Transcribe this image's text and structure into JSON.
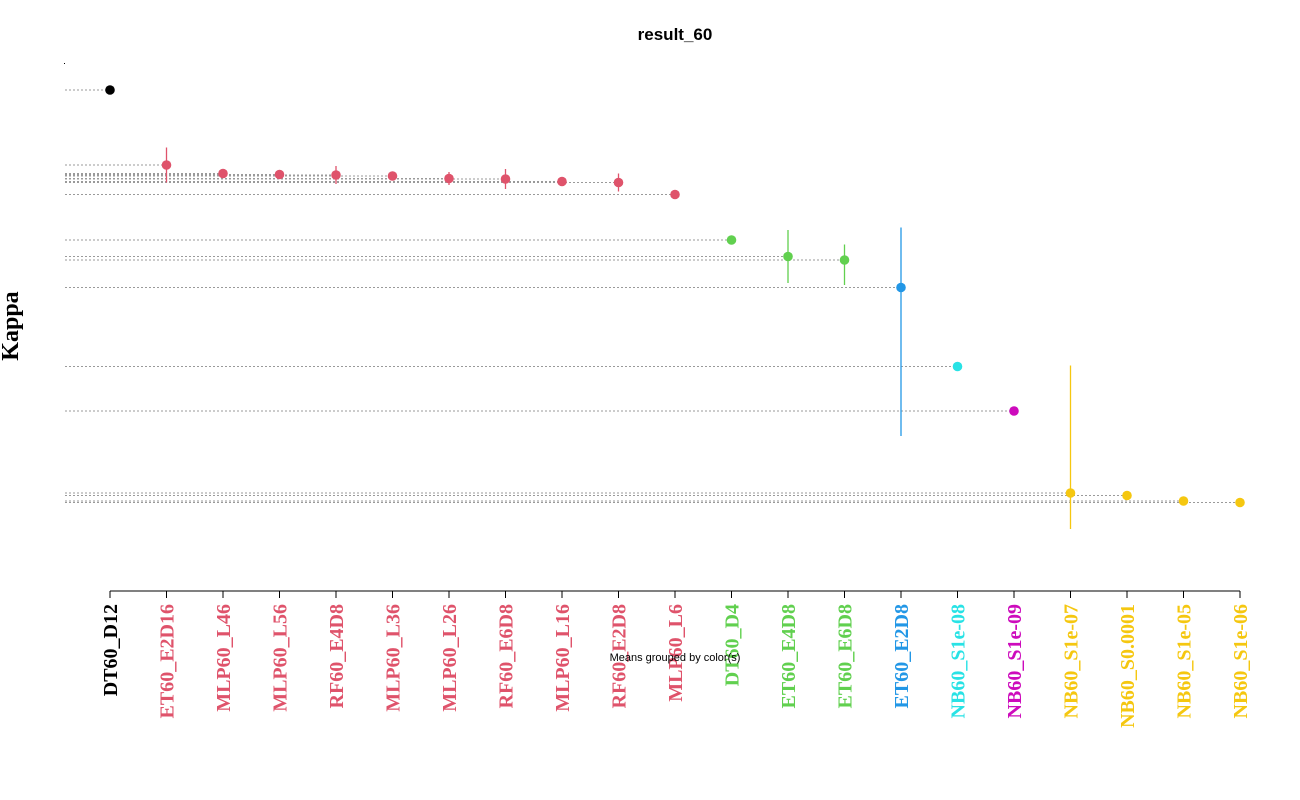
{
  "chart_data": {
    "type": "scatter",
    "title": "result_60",
    "ylabel": "Kappa",
    "xlabel": "",
    "caption": "Means grouped by color(s)",
    "grid": false,
    "show_y_ticks": false,
    "y_range": [
      -0.02,
      1.0
    ],
    "groups": [
      {
        "id": "g1",
        "color": "#000000"
      },
      {
        "id": "g2",
        "color": "#DF536B"
      },
      {
        "id": "g3",
        "color": "#61D04F"
      },
      {
        "id": "g4",
        "color": "#2297E6"
      },
      {
        "id": "g5",
        "color": "#28E2E5"
      },
      {
        "id": "g6",
        "color": "#CD0BBC"
      },
      {
        "id": "g7",
        "color": "#F5C710"
      }
    ],
    "points": [
      {
        "label": "DT60_D12",
        "group": "g1",
        "mean": 0.95,
        "err_low": 0.947,
        "err_high": 0.953
      },
      {
        "label": "ET60_E2D16",
        "group": "g2",
        "mean": 0.8,
        "err_low": 0.765,
        "err_high": 0.835
      },
      {
        "label": "MLP60_L46",
        "group": "g2",
        "mean": 0.783,
        "err_low": 0.777,
        "err_high": 0.789
      },
      {
        "label": "MLP60_L56",
        "group": "g2",
        "mean": 0.781,
        "err_low": 0.776,
        "err_high": 0.786
      },
      {
        "label": "RF60_E4D8",
        "group": "g2",
        "mean": 0.78,
        "err_low": 0.762,
        "err_high": 0.798
      },
      {
        "label": "MLP60_L36",
        "group": "g2",
        "mean": 0.778,
        "err_low": 0.773,
        "err_high": 0.783
      },
      {
        "label": "MLP60_L26",
        "group": "g2",
        "mean": 0.773,
        "err_low": 0.76,
        "err_high": 0.786
      },
      {
        "label": "RF60_E6D8",
        "group": "g2",
        "mean": 0.772,
        "err_low": 0.752,
        "err_high": 0.792
      },
      {
        "label": "MLP60_L16",
        "group": "g2",
        "mean": 0.767,
        "err_low": 0.763,
        "err_high": 0.771
      },
      {
        "label": "RF60_E2D8",
        "group": "g2",
        "mean": 0.765,
        "err_low": 0.747,
        "err_high": 0.783
      },
      {
        "label": "MLP60_L6",
        "group": "g2",
        "mean": 0.741,
        "err_low": 0.738,
        "err_high": 0.744
      },
      {
        "label": "DT60_D4",
        "group": "g3",
        "mean": 0.65,
        "err_low": 0.647,
        "err_high": 0.653
      },
      {
        "label": "ET60_E4D8",
        "group": "g3",
        "mean": 0.617,
        "err_low": 0.564,
        "err_high": 0.67
      },
      {
        "label": "ET60_E6D8",
        "group": "g3",
        "mean": 0.61,
        "err_low": 0.56,
        "err_high": 0.641
      },
      {
        "label": "ET60_E2D8",
        "group": "g4",
        "mean": 0.555,
        "err_low": 0.258,
        "err_high": 0.675
      },
      {
        "label": "NB60_S1e-08",
        "group": "g5",
        "mean": 0.397,
        "err_low": 0.394,
        "err_high": 0.4
      },
      {
        "label": "NB60_S1e-09",
        "group": "g6",
        "mean": 0.308,
        "err_low": 0.305,
        "err_high": 0.311
      },
      {
        "label": "NB60_S1e-07",
        "group": "g7",
        "mean": 0.144,
        "err_low": 0.072,
        "err_high": 0.399
      },
      {
        "label": "NB60_S0.0001",
        "group": "g7",
        "mean": 0.139,
        "err_low": 0.136,
        "err_high": 0.142
      },
      {
        "label": "NB60_S1e-05",
        "group": "g7",
        "mean": 0.128,
        "err_low": 0.125,
        "err_high": 0.131
      },
      {
        "label": "NB60_S1e-06",
        "group": "g7",
        "mean": 0.125,
        "err_low": 0.122,
        "err_high": 0.128
      }
    ]
  }
}
